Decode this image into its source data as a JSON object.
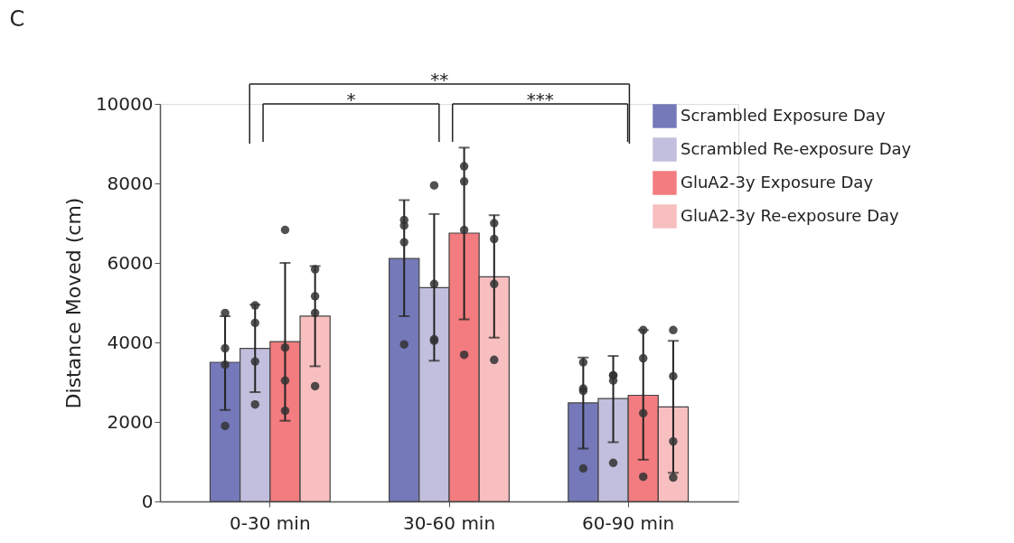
{
  "chart_data": {
    "type": "bar",
    "title": "C",
    "ylabel": "Distance Moved (cm)",
    "categories": [
      "0-30 min",
      "30-60 min",
      "60-90 min"
    ],
    "ylim": [
      0,
      10000
    ],
    "yticks": [
      0,
      2000,
      4000,
      6000,
      8000,
      10000
    ],
    "grid": false,
    "legend": "top right",
    "series": [
      {
        "name": "Scrambled Exposure Day",
        "color": "#7579b9",
        "values": [
          3500,
          6110,
          2480
        ],
        "errors": [
          [
            2300,
            4660
          ],
          [
            4660,
            7580
          ],
          [
            1330,
            3620
          ]
        ]
      },
      {
        "name": "Scrambled Re-exposure Day",
        "color": "#c1bfdd",
        "values": [
          3850,
          5380,
          2590
        ],
        "errors": [
          [
            2750,
            4950
          ],
          [
            3540,
            7230
          ],
          [
            1490,
            3660
          ]
        ]
      },
      {
        "name": "GluA2-3y Exposure Day",
        "color": "#f27c7f",
        "values": [
          4020,
          6750,
          2670
        ],
        "errors": [
          [
            2030,
            6000
          ],
          [
            4580,
            8900
          ],
          [
            1050,
            4310
          ]
        ]
      },
      {
        "name": "GluA2-3y Re-exposure Day",
        "color": "#f8bfc0",
        "values": [
          4660,
          5650,
          2380
        ],
        "errors": [
          [
            3400,
            5920
          ],
          [
            4120,
            7200
          ],
          [
            720,
            4040
          ]
        ]
      },
      {
        "type": "scatter",
        "color": "#333333",
        "x": [
          "0-30 min",
          "0-30 min",
          "0-30 min",
          "0-30 min",
          "30-60 min",
          "30-60 min",
          "30-60 min",
          "30-60 min",
          "60-90 min",
          "60-90 min",
          "60-90 min",
          "60-90 min"
        ],
        "values": [
          4740,
          3850,
          3440,
          1900,
          7080,
          6940,
          6520,
          3950,
          3500,
          2840,
          2780,
          830
        ]
      },
      {
        "type": "scatter",
        "color": "#333333",
        "x": [
          "0-30 min",
          "0-30 min",
          "0-30 min",
          "0-30 min",
          "30-60 min",
          "30-60 min",
          "30-60 min",
          "30-60 min",
          "60-90 min",
          "60-90 min",
          "60-90 min",
          "60-90 min"
        ],
        "values": [
          4930,
          4490,
          3520,
          2440,
          7950,
          5470,
          4080,
          4040,
          3170,
          3170,
          3040,
          970
        ]
      },
      {
        "type": "scatter",
        "color": "#333333",
        "x": [
          "0-30 min",
          "0-30 min",
          "0-30 min",
          "0-30 min",
          "30-60 min",
          "30-60 min",
          "30-60 min",
          "30-60 min",
          "60-90 min",
          "60-90 min",
          "60-90 min",
          "60-90 min"
        ],
        "values": [
          6830,
          3870,
          3040,
          2280,
          8430,
          8050,
          6830,
          3690,
          4310,
          3600,
          2220,
          620
        ]
      },
      {
        "type": "scatter",
        "color": "#333333",
        "x": [
          "0-30 min",
          "0-30 min",
          "0-30 min",
          "0-30 min",
          "30-60 min",
          "30-60 min",
          "30-60 min",
          "30-60 min",
          "60-90 min",
          "60-90 min",
          "60-90 min",
          "60-90 min"
        ],
        "values": [
          5840,
          5160,
          4740,
          2900,
          7000,
          6600,
          5470,
          3560,
          4310,
          3150,
          1510,
          600
        ]
      }
    ],
    "annotations": [
      "**",
      "*",
      "***"
    ]
  }
}
